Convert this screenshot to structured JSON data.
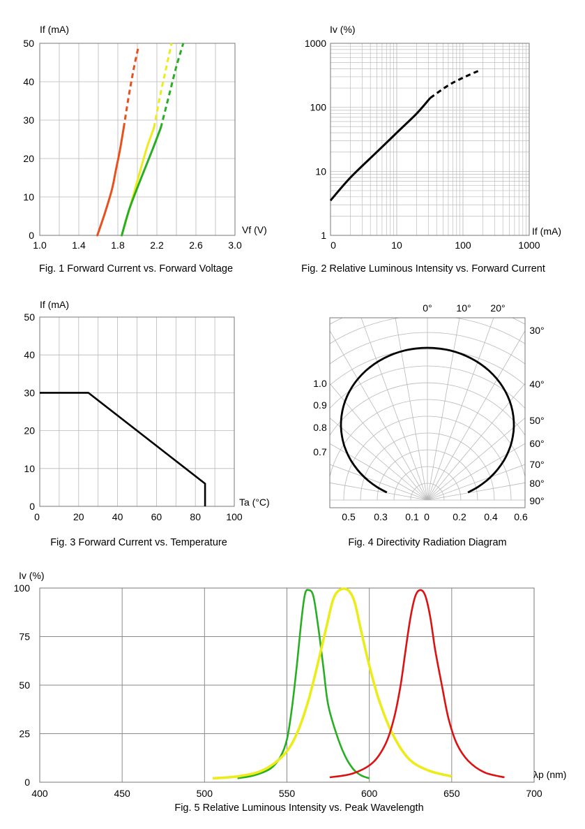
{
  "colors": {
    "red": "#e8501e",
    "yellow": "#ecec1a",
    "green": "#27ae23",
    "black": "#000000",
    "red5": "#dd1111"
  },
  "chart_data": [
    {
      "id": "fig1",
      "type": "line",
      "title": "Fig. 1 Forward Current vs. Forward Voltage",
      "xlabel": "Vf (V)",
      "ylabel": "If (mA)",
      "xlim": [
        1.0,
        3.0
      ],
      "ylim": [
        0,
        50
      ],
      "x_ticks": [
        "1.0",
        "1.4",
        "1.8",
        "2.2",
        "2.6",
        "3.0"
      ],
      "y_ticks": [
        "0",
        "10",
        "20",
        "30",
        "40",
        "50"
      ],
      "series": [
        {
          "name": "red",
          "color": "red",
          "solid": [
            [
              1.59,
              0
            ],
            [
              1.67,
              6
            ],
            [
              1.74,
              12
            ],
            [
              1.78,
              17
            ],
            [
              1.82,
              22
            ],
            [
              1.86,
              28
            ]
          ],
          "dashed": [
            [
              1.86,
              28
            ],
            [
              1.91,
              36
            ],
            [
              1.96,
              43
            ],
            [
              2.01,
              49
            ]
          ]
        },
        {
          "name": "yellow",
          "color": "yellow",
          "solid": [
            [
              1.84,
              0
            ],
            [
              1.92,
              7
            ],
            [
              2.02,
              16
            ],
            [
              2.1,
              23
            ],
            [
              2.17,
              28
            ]
          ],
          "dashed": [
            [
              2.17,
              28
            ],
            [
              2.23,
              36
            ],
            [
              2.29,
              43
            ],
            [
              2.35,
              50
            ]
          ]
        },
        {
          "name": "green",
          "color": "green",
          "solid": [
            [
              1.84,
              0
            ],
            [
              1.92,
              7
            ],
            [
              2.04,
              15
            ],
            [
              2.15,
              22
            ],
            [
              2.24,
              28
            ]
          ],
          "dashed": [
            [
              2.24,
              28
            ],
            [
              2.33,
              37
            ],
            [
              2.4,
              44
            ],
            [
              2.47,
              50
            ]
          ]
        }
      ]
    },
    {
      "id": "fig2",
      "type": "line",
      "title": "Fig. 2 Relative Luminous Intensity vs. Forward Current",
      "xlabel": "If (mA)",
      "ylabel": "Iv (%)",
      "xscale": "log",
      "yscale": "log",
      "x_ticks": [
        "0",
        "10",
        "100",
        "1000"
      ],
      "y_ticks": [
        "1",
        "10",
        "100",
        "1000"
      ],
      "series": [
        {
          "name": "Iv",
          "color": "black",
          "solid": [
            [
              1,
              3.5
            ],
            [
              2,
              8
            ],
            [
              5,
              20
            ],
            [
              10,
              40
            ],
            [
              20,
              80
            ],
            [
              32,
              140
            ]
          ],
          "dashed": [
            [
              32,
              140
            ],
            [
              60,
              220
            ],
            [
              100,
              290
            ],
            [
              170,
              370
            ]
          ]
        }
      ]
    },
    {
      "id": "fig3",
      "type": "line",
      "title": "Fig. 3 Forward Current vs. Temperature",
      "xlabel": "Ta (°C)",
      "ylabel": "If (mA)",
      "xlim": [
        0,
        100
      ],
      "ylim": [
        0,
        50
      ],
      "x_ticks": [
        "0",
        "20",
        "40",
        "60",
        "80",
        "100"
      ],
      "y_ticks": [
        "0",
        "10",
        "20",
        "30",
        "40",
        "50"
      ],
      "series": [
        {
          "name": "derating",
          "color": "black",
          "solid": [
            [
              0,
              30
            ],
            [
              25,
              30
            ],
            [
              85,
              6
            ],
            [
              85,
              0
            ]
          ]
        }
      ]
    },
    {
      "id": "fig4",
      "type": "polar",
      "title": "Fig. 4 Directivity Radiation Diagram",
      "angle_labels_top": [
        "0°",
        "10°",
        "20°"
      ],
      "angle_labels_right": [
        "30°",
        "40°",
        "50°",
        "60°",
        "70°",
        "80°",
        "90°"
      ],
      "ring_labels": [
        "1.0",
        "0.9",
        "0.8",
        "0.7"
      ],
      "bottom_labels": [
        "0.5",
        "0.3",
        "0.1",
        "0",
        "0.2",
        "0.4",
        "0.6"
      ],
      "series": [
        {
          "name": "pattern",
          "color": "black",
          "points": [
            [
              0,
              1.0
            ],
            [
              10,
              1.0
            ],
            [
              20,
              0.99
            ],
            [
              30,
              0.98
            ],
            [
              40,
              0.97
            ],
            [
              50,
              0.96
            ],
            [
              60,
              0.95
            ],
            [
              70,
              0.92
            ],
            [
              76,
              0.88
            ],
            [
              80,
              0.82
            ],
            [
              82,
              0.77
            ]
          ]
        }
      ]
    },
    {
      "id": "fig5",
      "type": "line",
      "title": "Fig. 5 Relative Luminous Intensity vs. Peak Wavelength",
      "xlabel": "λp (nm)",
      "ylabel": "Iv (%)",
      "xlim": [
        400,
        700
      ],
      "ylim": [
        0,
        100
      ],
      "x_ticks": [
        "400",
        "450",
        "500",
        "550",
        "600",
        "650",
        "700"
      ],
      "y_ticks": [
        "0",
        "25",
        "50",
        "75",
        "100"
      ],
      "series": [
        {
          "name": "green",
          "color": "green",
          "points": [
            [
              520,
              2
            ],
            [
              530,
              3.5
            ],
            [
              540,
              7
            ],
            [
              546,
              13
            ],
            [
              550,
              22
            ],
            [
              553,
              38
            ],
            [
              556,
              60
            ],
            [
              559,
              85
            ],
            [
              561,
              97
            ],
            [
              563,
              99
            ],
            [
              566,
              96
            ],
            [
              569,
              80
            ],
            [
              572,
              60
            ],
            [
              575,
              40
            ],
            [
              580,
              25
            ],
            [
              585,
              14
            ],
            [
              590,
              7
            ],
            [
              595,
              3.5
            ],
            [
              600,
              2
            ]
          ]
        },
        {
          "name": "yellow",
          "color": "yellow",
          "points": [
            [
              505,
              2
            ],
            [
              520,
              3
            ],
            [
              535,
              6
            ],
            [
              548,
              14
            ],
            [
              556,
              25
            ],
            [
              563,
              42
            ],
            [
              569,
              62
            ],
            [
              574,
              80
            ],
            [
              578,
              94
            ],
            [
              582,
              99
            ],
            [
              587,
              99
            ],
            [
              591,
              93
            ],
            [
              595,
              78
            ],
            [
              600,
              60
            ],
            [
              606,
              42
            ],
            [
              614,
              25
            ],
            [
              624,
              12
            ],
            [
              636,
              6
            ],
            [
              650,
              3
            ]
          ]
        },
        {
          "name": "red",
          "color": "red5",
          "points": [
            [
              576,
              2.5
            ],
            [
              590,
              4.5
            ],
            [
              602,
              10
            ],
            [
              610,
              20
            ],
            [
              615,
              33
            ],
            [
              619,
              50
            ],
            [
              622,
              68
            ],
            [
              625,
              85
            ],
            [
              628,
              96
            ],
            [
              631,
              99
            ],
            [
              634,
              96
            ],
            [
              637,
              85
            ],
            [
              640,
              68
            ],
            [
              644,
              50
            ],
            [
              648,
              33
            ],
            [
              653,
              20
            ],
            [
              660,
              11
            ],
            [
              670,
              5
            ],
            [
              682,
              2.5
            ]
          ]
        }
      ]
    }
  ]
}
